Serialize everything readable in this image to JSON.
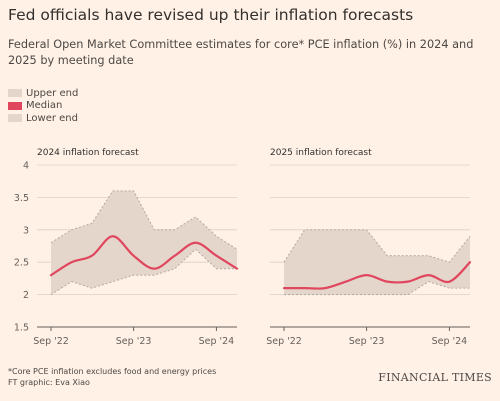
{
  "title": "Fed officials have revised up their inflation forecasts",
  "subtitle": "Federal Open Market Committee estimates for core* PCE inflation (%) in 2024 and 2025 by meeting date",
  "legend": [
    {
      "label": "Upper end",
      "color": "#e5d6cc"
    },
    {
      "label": "Median",
      "color": "#e0475f"
    },
    {
      "label": "Lower end",
      "color": "#e5d6cc"
    }
  ],
  "colors": {
    "range_fill": "#e5d6cc",
    "range_border": "#b8aea6",
    "median": "#e0475f",
    "grid": "#ddd0c6",
    "axis": "#66605c"
  },
  "footnote": {
    "line1": "*Core PCE inflation excludes food and energy prices",
    "line2": "FT graphic: Eva Xiao"
  },
  "brand": "FINANCIAL TIMES",
  "chart_data": [
    {
      "type": "area",
      "title": "2024 inflation forecast",
      "xlabel": "",
      "ylabel": "",
      "ylim": [
        1.5,
        4
      ],
      "yticks": [
        "1.5",
        "2",
        "2.5",
        "3",
        "3.5",
        "4"
      ],
      "xticks": [
        {
          "label": "Sep '22",
          "date": "2022-09"
        },
        {
          "label": "Sep '23",
          "date": "2023-09"
        },
        {
          "label": "Sep '24",
          "date": "2024-09"
        }
      ],
      "grid": true,
      "dates": [
        "2022-09",
        "2022-12",
        "2023-03",
        "2023-06",
        "2023-09",
        "2023-12",
        "2024-03",
        "2024-06",
        "2024-09",
        "2024-12"
      ],
      "series": [
        {
          "name": "Upper end",
          "values": [
            2.8,
            3.0,
            3.1,
            3.6,
            3.6,
            3.0,
            3.0,
            3.2,
            2.9,
            2.7
          ]
        },
        {
          "name": "Median",
          "values": [
            2.3,
            2.5,
            2.6,
            2.9,
            2.6,
            2.4,
            2.6,
            2.8,
            2.6,
            2.4
          ]
        },
        {
          "name": "Lower end",
          "values": [
            2.0,
            2.2,
            2.1,
            2.2,
            2.3,
            2.3,
            2.4,
            2.7,
            2.4,
            2.4
          ]
        }
      ]
    },
    {
      "type": "area",
      "title": "2025 inflation forecast",
      "xlabel": "",
      "ylabel": "",
      "ylim": [
        1.5,
        4
      ],
      "xticks": [
        {
          "label": "Sep '22",
          "date": "2022-09"
        },
        {
          "label": "Sep '23",
          "date": "2023-09"
        },
        {
          "label": "Sep '24",
          "date": "2024-09"
        }
      ],
      "grid": true,
      "dates": [
        "2022-09",
        "2022-12",
        "2023-03",
        "2023-06",
        "2023-09",
        "2023-12",
        "2024-03",
        "2024-06",
        "2024-09",
        "2024-12"
      ],
      "series": [
        {
          "name": "Upper end",
          "values": [
            2.5,
            3.0,
            3.0,
            3.0,
            3.0,
            2.6,
            2.6,
            2.6,
            2.5,
            2.9
          ]
        },
        {
          "name": "Median",
          "values": [
            2.1,
            2.1,
            2.1,
            2.2,
            2.3,
            2.2,
            2.2,
            2.3,
            2.2,
            2.5
          ]
        },
        {
          "name": "Lower end",
          "values": [
            2.0,
            2.0,
            2.0,
            2.0,
            2.0,
            2.0,
            2.0,
            2.2,
            2.1,
            2.1
          ]
        }
      ]
    }
  ]
}
